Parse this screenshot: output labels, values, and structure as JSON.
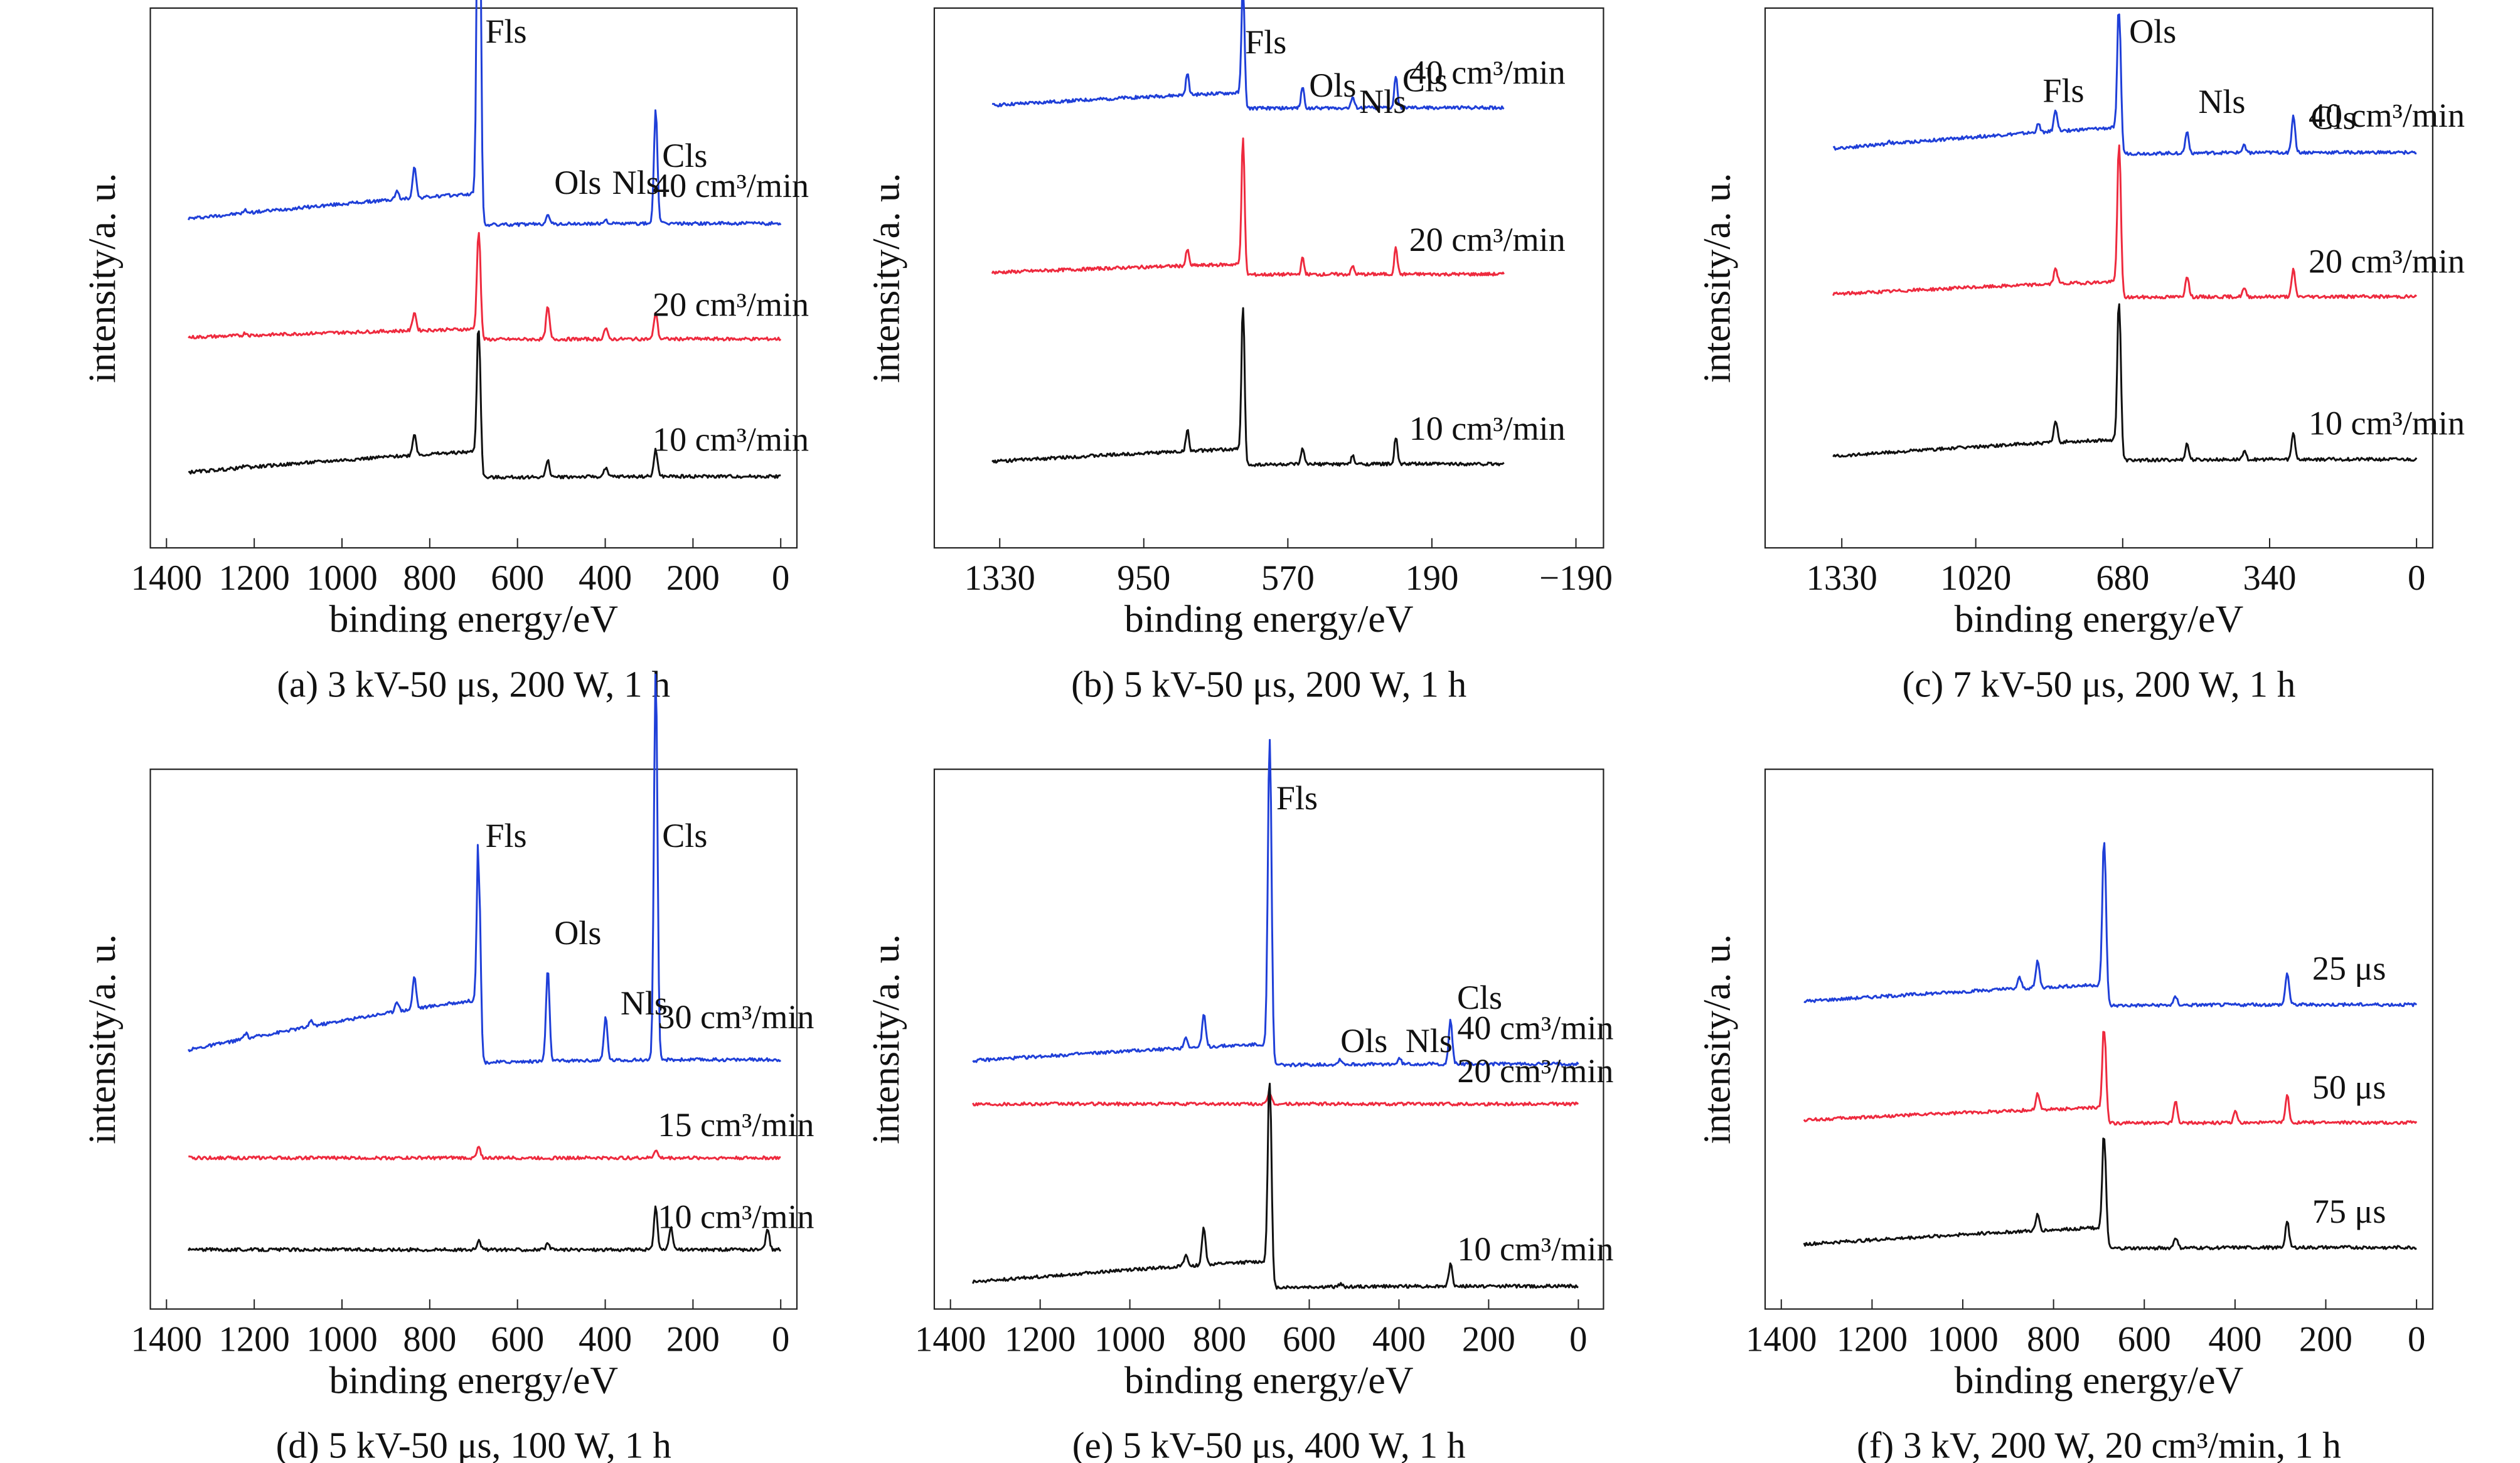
{
  "figure": {
    "common": {
      "ylabel": "intensity/a. u.",
      "xlabel": "binding energy/eV"
    },
    "colors": {
      "blue": "#1f3fd8",
      "red": "#ee2a3e",
      "black": "#111111"
    }
  },
  "chart_data": [
    {
      "id": "a",
      "type": "line",
      "caption": "(a) 3 kV-50 μs, 200 W, 1 h",
      "xlabel": "binding energy/eV",
      "ylabel": "intensity/a. u.",
      "xlim": [
        1400,
        0
      ],
      "xticks": [
        "1400",
        "1200",
        "1000",
        "800",
        "600",
        "400",
        "200",
        "0"
      ],
      "x_reversed": true,
      "series": [
        {
          "name": "40 cm³/min",
          "color": "#1f3fd8",
          "base": 0.61,
          "slope": 0.06,
          "peaks": [
            [
              1220,
              0.005
            ],
            [
              875,
              0.015
            ],
            [
              835,
              0.06
            ],
            [
              688,
              0.9
            ],
            [
              531,
              0.02
            ],
            [
              399,
              0.008
            ],
            [
              285,
              0.12
            ],
            [
              285,
              0.09
            ]
          ],
          "label_at_x": 292,
          "label_dy": -0.04
        },
        {
          "name": "20 cm³/min",
          "color": "#ee2a3e",
          "base": 0.39,
          "slope": 0.02,
          "peaks": [
            [
              1220,
              0.005
            ],
            [
              835,
              0.035
            ],
            [
              688,
              0.2
            ],
            [
              531,
              0.06
            ],
            [
              399,
              0.02
            ],
            [
              285,
              0.05
            ]
          ],
          "label_at_x": 292,
          "label_dy": -0.04
        },
        {
          "name": "10 cm³/min",
          "color": "#111111",
          "base": 0.14,
          "slope": 0.05,
          "peaks": [
            [
              1220,
              0.005
            ],
            [
              835,
              0.04
            ],
            [
              688,
              0.27
            ],
            [
              531,
              0.03
            ],
            [
              399,
              0.015
            ],
            [
              285,
              0.05
            ]
          ],
          "label_at_x": 292,
          "label_dy": -0.04
        }
      ],
      "annotations": [
        {
          "text": "Fls",
          "x": 688,
          "y": 0.96
        },
        {
          "text": "Ols",
          "x": 531,
          "y": 0.68
        },
        {
          "text": "Nls",
          "x": 399,
          "y": 0.68
        },
        {
          "text": "Cls",
          "x": 285,
          "y": 0.73
        }
      ]
    },
    {
      "id": "b",
      "type": "line",
      "caption": "(b) 5 kV-50 μs, 200 W, 1 h",
      "xlabel": "binding energy/eV",
      "ylabel": "intensity/a. u.",
      "xlim": [
        1460,
        -220
      ],
      "xticks": [
        "1330",
        "950",
        "570",
        "190",
        "−190"
      ],
      "xtick_values": [
        1330,
        950,
        570,
        190,
        -190
      ],
      "x_reversed": true,
      "series": [
        {
          "name": "40 cm³/min",
          "color": "#1f3fd8",
          "base": 0.82,
          "slope": 0.03,
          "peaks": [
            [
              835,
              0.04
            ],
            [
              688,
              0.22
            ],
            [
              531,
              0.04
            ],
            [
              399,
              0.02
            ],
            [
              285,
              0.06
            ]
          ],
          "label_at_x": 250,
          "label_dy": -0.03
        },
        {
          "name": "20 cm³/min",
          "color": "#ee2a3e",
          "base": 0.51,
          "slope": 0.02,
          "peaks": [
            [
              835,
              0.03
            ],
            [
              688,
              0.25
            ],
            [
              531,
              0.03
            ],
            [
              399,
              0.015
            ],
            [
              285,
              0.05
            ]
          ],
          "label_at_x": 250,
          "label_dy": -0.03
        },
        {
          "name": "10 cm³/min",
          "color": "#111111",
          "base": 0.16,
          "slope": 0.03,
          "peaks": [
            [
              835,
              0.04
            ],
            [
              688,
              0.29
            ],
            [
              531,
              0.03
            ],
            [
              399,
              0.015
            ],
            [
              285,
              0.05
            ]
          ],
          "label_at_x": 250,
          "label_dy": -0.03
        }
      ],
      "annotations": [
        {
          "text": "Fls",
          "x": 700,
          "y": 0.94
        },
        {
          "text": "Ols",
          "x": 531,
          "y": 0.86
        },
        {
          "text": "Nls",
          "x": 399,
          "y": 0.83
        },
        {
          "text": "Cls",
          "x": 285,
          "y": 0.87
        }
      ]
    },
    {
      "id": "c",
      "type": "line",
      "caption": "(c) 7 kV-50 μs, 200 W, 1 h",
      "xlabel": "binding energy/eV",
      "ylabel": "intensity/a. u.",
      "xlim": [
        1470,
        0
      ],
      "xticks": [
        "1330",
        "1020",
        "680",
        "340",
        "0"
      ],
      "xtick_values": [
        1330,
        1020,
        680,
        340,
        0
      ],
      "x_reversed": true,
      "series": [
        {
          "name": "40 cm³/min",
          "color": "#1f3fd8",
          "base": 0.74,
          "slope": 0.05,
          "peaks": [
            [
              1220,
              0.005
            ],
            [
              875,
              0.015
            ],
            [
              835,
              0.04
            ],
            [
              688,
              0.26
            ],
            [
              531,
              0.04
            ],
            [
              399,
              0.015
            ],
            [
              285,
              0.07
            ]
          ],
          "label_at_x": 250,
          "label_dy": -0.04
        },
        {
          "name": "20 cm³/min",
          "color": "#ee2a3e",
          "base": 0.47,
          "slope": 0.03,
          "peaks": [
            [
              835,
              0.03
            ],
            [
              688,
              0.28
            ],
            [
              531,
              0.04
            ],
            [
              399,
              0.015
            ],
            [
              285,
              0.05
            ]
          ],
          "label_at_x": 250,
          "label_dy": -0.04
        },
        {
          "name": "10 cm³/min",
          "color": "#111111",
          "base": 0.17,
          "slope": 0.04,
          "peaks": [
            [
              835,
              0.04
            ],
            [
              688,
              0.29
            ],
            [
              531,
              0.03
            ],
            [
              399,
              0.015
            ],
            [
              285,
              0.05
            ]
          ],
          "label_at_x": 250,
          "label_dy": -0.04
        }
      ],
      "annotations": [
        {
          "text": "Ols",
          "x": 680,
          "y": 0.96
        },
        {
          "text": "Fls",
          "x": 880,
          "y": 0.85
        },
        {
          "text": "Nls",
          "x": 520,
          "y": 0.83
        },
        {
          "text": "Cls",
          "x": 260,
          "y": 0.8
        }
      ]
    },
    {
      "id": "d",
      "type": "line",
      "caption": "(d) 5 kV-50 μs, 100 W, 1 h",
      "xlabel": "binding energy/eV",
      "ylabel": "intensity/a. u.",
      "xlim": [
        1400,
        0
      ],
      "xticks": [
        "1400",
        "1200",
        "1000",
        "800",
        "600",
        "400",
        "200",
        "0"
      ],
      "x_reversed": true,
      "series": [
        {
          "name": "30 cm³/min",
          "color": "#1f3fd8",
          "base": 0.48,
          "slope": 0.12,
          "peaks": [
            [
              1220,
              0.01
            ],
            [
              1070,
              0.01
            ],
            [
              875,
              0.02
            ],
            [
              835,
              0.06
            ],
            [
              688,
              0.35
            ],
            [
              531,
              0.17
            ],
            [
              399,
              0.08
            ],
            [
              285,
              0.46
            ],
            [
              285,
              0.26
            ]
          ],
          "label_at_x": 280,
          "label_dy": -0.03
        },
        {
          "name": "15 cm³/min",
          "color": "#ee2a3e",
          "base": 0.28,
          "slope": 0.0,
          "peaks": [
            [
              688,
              0.02
            ],
            [
              285,
              0.015
            ]
          ],
          "label_at_x": 280,
          "label_dy": -0.03
        },
        {
          "name": "10 cm³/min",
          "color": "#111111",
          "base": 0.11,
          "slope": 0.0,
          "peaks": [
            [
              688,
              0.02
            ],
            [
              531,
              0.01
            ],
            [
              285,
              0.08
            ],
            [
              250,
              0.04
            ],
            [
              30,
              0.04
            ]
          ],
          "label_at_x": 280,
          "label_dy": -0.03
        }
      ],
      "annotations": [
        {
          "text": "Fls",
          "x": 688,
          "y": 0.88
        },
        {
          "text": "Ols",
          "x": 531,
          "y": 0.7
        },
        {
          "text": "Nls",
          "x": 380,
          "y": 0.57
        },
        {
          "text": "Cls",
          "x": 285,
          "y": 0.88
        }
      ]
    },
    {
      "id": "e",
      "type": "line",
      "caption": "(e) 5 kV-50 μs, 400 W, 1 h",
      "xlabel": "binding energy/eV",
      "ylabel": "intensity/a. u.",
      "xlim": [
        1400,
        -20
      ],
      "xticks": [
        "1400",
        "1200",
        "1000",
        "800",
        "600",
        "400",
        "200",
        "0"
      ],
      "x_reversed": true,
      "series": [
        {
          "name": "40 cm³/min",
          "color": "#1f3fd8",
          "base": 0.46,
          "slope": 0.04,
          "peaks": [
            [
              875,
              0.02
            ],
            [
              835,
              0.06
            ],
            [
              688,
              0.6
            ],
            [
              531,
              0.01
            ],
            [
              399,
              0.01
            ],
            [
              285,
              0.08
            ]
          ],
          "label_at_x": 270,
          "label_dy": -0.03
        },
        {
          "name": "20 cm³/min",
          "color": "#ee2a3e",
          "base": 0.38,
          "slope": 0.0,
          "peaks": [
            [
              688,
              0.02
            ]
          ],
          "label_at_x": 270,
          "label_dy": -0.03
        },
        {
          "name": "10 cm³/min",
          "color": "#111111",
          "base": 0.05,
          "slope": 0.05,
          "peaks": [
            [
              875,
              0.02
            ],
            [
              835,
              0.07
            ],
            [
              688,
              0.38
            ],
            [
              531,
              0.005
            ],
            [
              285,
              0.04
            ]
          ],
          "label_at_x": 270,
          "label_dy": -0.03
        }
      ],
      "annotations": [
        {
          "text": "Fls",
          "x": 688,
          "y": 0.95
        },
        {
          "text": "Ols",
          "x": 545,
          "y": 0.5
        },
        {
          "text": "Nls",
          "x": 400,
          "y": 0.5
        },
        {
          "text": "Cls",
          "x": 285,
          "y": 0.58
        }
      ]
    },
    {
      "id": "f",
      "type": "line",
      "caption": "(f) 3 kV, 200 W, 20 cm³/min, 1 h",
      "xlabel": "binding energy/eV",
      "ylabel": "intensity/a. u.",
      "xlim": [
        1400,
        0
      ],
      "xticks": [
        "1400",
        "1200",
        "1000",
        "800",
        "600",
        "400",
        "200",
        "0"
      ],
      "x_reversed": true,
      "series": [
        {
          "name": "25 μs",
          "color": "#1f3fd8",
          "base": 0.57,
          "slope": 0.04,
          "peaks": [
            [
              875,
              0.02
            ],
            [
              835,
              0.05
            ],
            [
              688,
              0.3
            ],
            [
              531,
              0.015
            ],
            [
              285,
              0.06
            ]
          ],
          "label_at_x": 230,
          "label_dy": -0.03
        },
        {
          "name": "50 μs",
          "color": "#ee2a3e",
          "base": 0.35,
          "slope": 0.03,
          "peaks": [
            [
              835,
              0.03
            ],
            [
              688,
              0.17
            ],
            [
              531,
              0.04
            ],
            [
              399,
              0.02
            ],
            [
              285,
              0.05
            ]
          ],
          "label_at_x": 230,
          "label_dy": -0.03
        },
        {
          "name": "75 μs",
          "color": "#111111",
          "base": 0.12,
          "slope": 0.04,
          "peaks": [
            [
              835,
              0.03
            ],
            [
              688,
              0.2
            ],
            [
              531,
              0.02
            ],
            [
              285,
              0.05
            ]
          ],
          "label_at_x": 230,
          "label_dy": -0.03
        }
      ],
      "annotations": []
    }
  ]
}
